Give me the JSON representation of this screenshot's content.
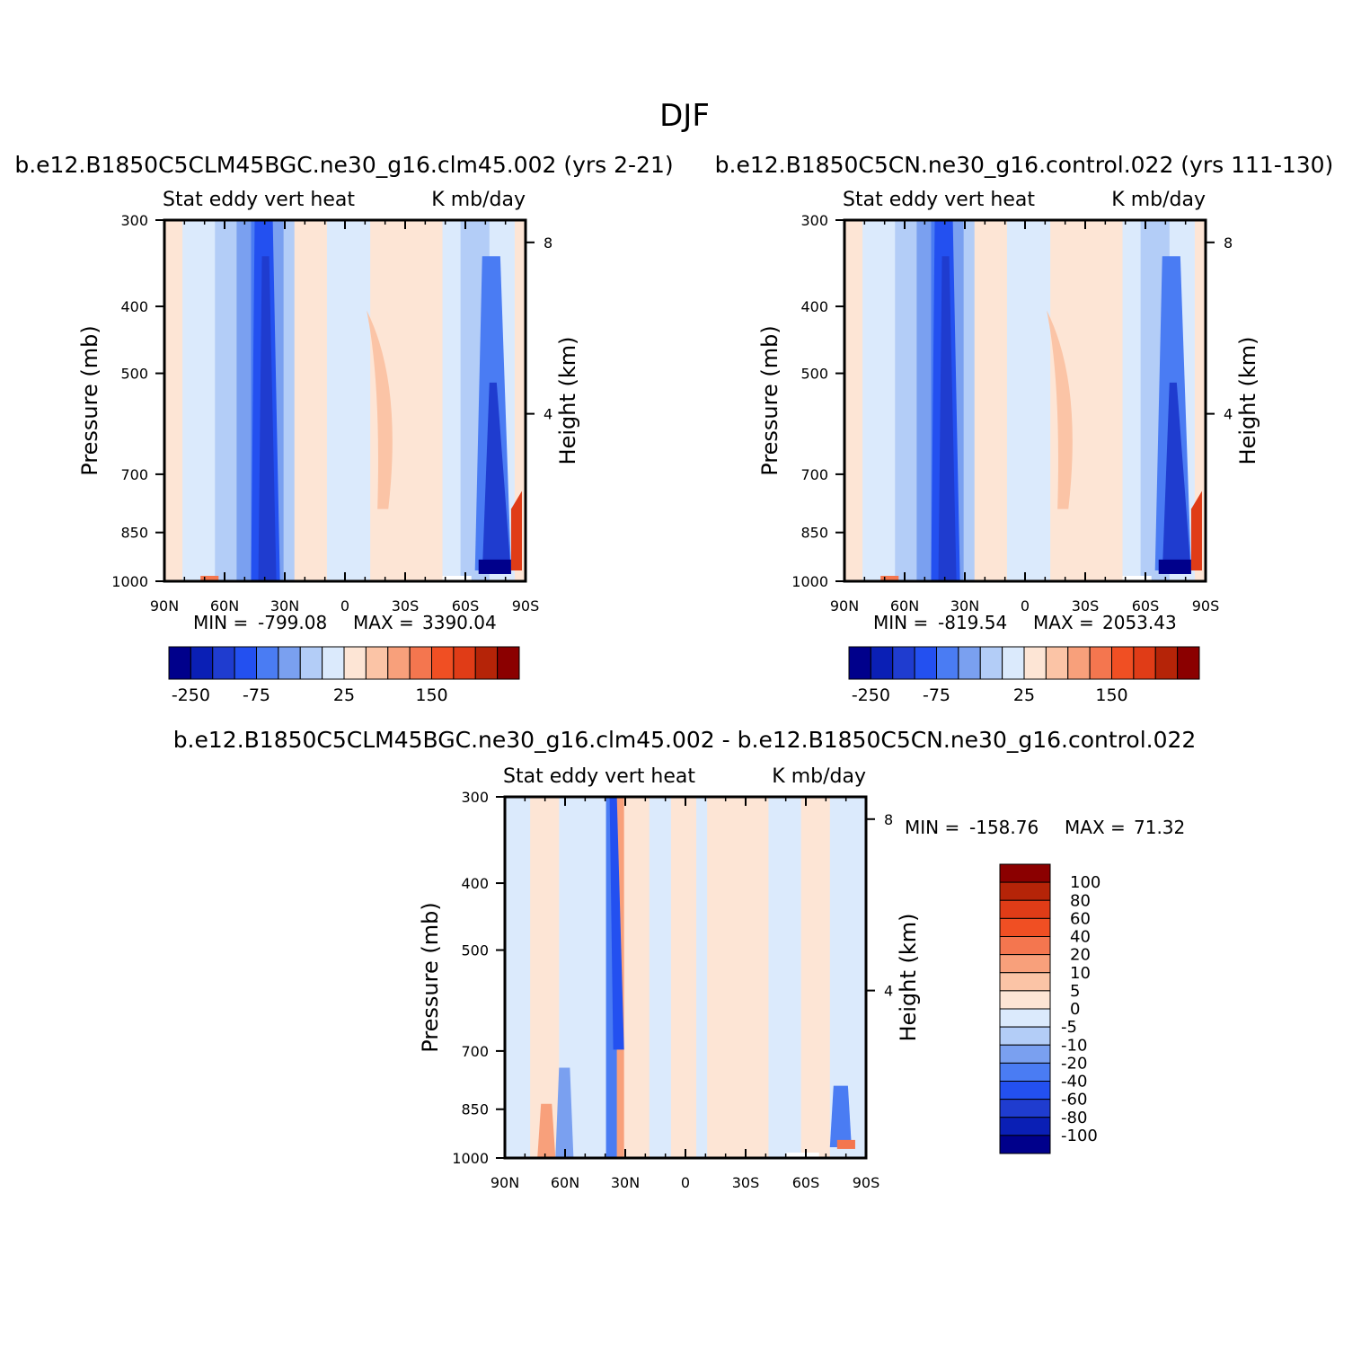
{
  "figure": {
    "title": "DJF"
  },
  "chart_data": [
    {
      "type": "heatmap",
      "panel": "left",
      "title": "b.e12.B1850C5CLM45BGC.ne30_g16.clm45.002 (yrs 2-21)",
      "left_string": "Stat eddy vert heat",
      "right_string": "K mb/day",
      "ylabel": "Pressure (mb)",
      "y2label": "Height (km)",
      "x_ticks": [
        "90N",
        "60N",
        "30N",
        "0",
        "30S",
        "60S",
        "90S"
      ],
      "y_ticks": [
        "300",
        "400",
        "500",
        "700",
        "850",
        "1000"
      ],
      "y2_ticks": [
        "8",
        "4"
      ],
      "min_max": {
        "min_label": "MIN =",
        "min": "-799.08",
        "max_label": "MAX =",
        "max": "3390.04"
      },
      "colorbar": {
        "orientation": "horizontal",
        "labels": [
          "-250",
          "-75",
          "25",
          "150"
        ],
        "colors": [
          "#00008b",
          "#0a1fb5",
          "#1f3ccf",
          "#2350f0",
          "#4a7cf3",
          "#7aa0f0",
          "#b3cdf7",
          "#dbeafc",
          "#fde5d5",
          "#fbc4a6",
          "#f8a07b",
          "#f4764f",
          "#f04f23",
          "#e03c17",
          "#b52408",
          "#8b0000"
        ]
      }
    },
    {
      "type": "heatmap",
      "panel": "right",
      "title": "b.e12.B1850C5CN.ne30_g16.control.022 (yrs 111-130)",
      "left_string": "Stat eddy vert heat",
      "right_string": "K mb/day",
      "ylabel": "Pressure (mb)",
      "y2label": "Height (km)",
      "x_ticks": [
        "90N",
        "60N",
        "30N",
        "0",
        "30S",
        "60S",
        "90S"
      ],
      "y_ticks": [
        "300",
        "400",
        "500",
        "700",
        "850",
        "1000"
      ],
      "y2_ticks": [
        "8",
        "4"
      ],
      "min_max": {
        "min_label": "MIN =",
        "min": "-819.54",
        "max_label": "MAX =",
        "max": "2053.43"
      },
      "colorbar": {
        "orientation": "horizontal",
        "labels": [
          "-250",
          "-75",
          "25",
          "150"
        ],
        "colors": [
          "#00008b",
          "#0a1fb5",
          "#1f3ccf",
          "#2350f0",
          "#4a7cf3",
          "#7aa0f0",
          "#b3cdf7",
          "#dbeafc",
          "#fde5d5",
          "#fbc4a6",
          "#f8a07b",
          "#f4764f",
          "#f04f23",
          "#e03c17",
          "#b52408",
          "#8b0000"
        ]
      }
    },
    {
      "type": "heatmap",
      "panel": "diff",
      "title": "b.e12.B1850C5CLM45BGC.ne30_g16.clm45.002 - b.e12.B1850C5CN.ne30_g16.control.022",
      "left_string": "Stat eddy vert heat",
      "right_string": "K mb/day",
      "ylabel": "Pressure (mb)",
      "y2label": "Height (km)",
      "x_ticks": [
        "90N",
        "60N",
        "30N",
        "0",
        "30S",
        "60S",
        "90S"
      ],
      "y_ticks": [
        "300",
        "400",
        "500",
        "700",
        "850",
        "1000"
      ],
      "y2_ticks": [
        "8",
        "4"
      ],
      "min_max": {
        "min_label": "MIN =",
        "min": "-158.76",
        "max_label": "MAX =",
        "max": "71.32"
      },
      "colorbar": {
        "orientation": "vertical",
        "labels": [
          "100",
          "80",
          "60",
          "40",
          "20",
          "10",
          "5",
          "0",
          "-5",
          "-10",
          "-20",
          "-40",
          "-60",
          "-80",
          "-100"
        ],
        "colors": [
          "#8b0000",
          "#b52408",
          "#e03c17",
          "#f04f23",
          "#f4764f",
          "#f8a07b",
          "#fbc4a6",
          "#fde5d5",
          "#dbeafc",
          "#b3cdf7",
          "#7aa0f0",
          "#4a7cf3",
          "#2350f0",
          "#1f3ccf",
          "#0a1fb5",
          "#00008b"
        ]
      }
    }
  ]
}
